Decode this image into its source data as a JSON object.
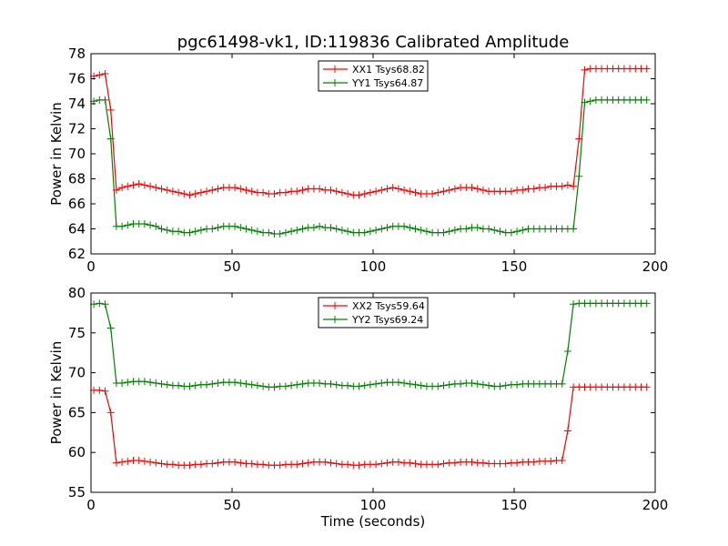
{
  "figure": {
    "title": "pgc61498-vk1, ID:119836 Calibrated Amplitude"
  },
  "chart_data": [
    {
      "type": "line",
      "title": "pgc61498-vk1, ID:119836 Calibrated Amplitude",
      "xlabel": "",
      "ylabel": "Power in Kelvin",
      "xlim": [
        0,
        200
      ],
      "ylim": [
        62,
        78
      ],
      "x_ticks": [
        0,
        50,
        100,
        150,
        200
      ],
      "y_ticks": [
        62,
        64,
        66,
        68,
        70,
        72,
        74,
        76,
        78
      ],
      "grid": false,
      "legend": "top-center",
      "marker": "+",
      "series": [
        {
          "name": "XX1 Tsys68.82",
          "color": "#ff0000",
          "x": [
            1,
            3,
            5,
            7,
            9,
            11,
            13,
            15,
            17,
            19,
            21,
            23,
            25,
            27,
            29,
            31,
            33,
            35,
            37,
            39,
            41,
            43,
            45,
            47,
            49,
            51,
            53,
            55,
            57,
            59,
            61,
            63,
            65,
            67,
            69,
            71,
            73,
            75,
            77,
            79,
            81,
            83,
            85,
            87,
            89,
            91,
            93,
            95,
            97,
            99,
            101,
            103,
            105,
            107,
            109,
            111,
            113,
            115,
            117,
            119,
            121,
            123,
            125,
            127,
            129,
            131,
            133,
            135,
            137,
            139,
            141,
            143,
            145,
            147,
            149,
            151,
            153,
            155,
            157,
            159,
            161,
            163,
            165,
            167,
            169,
            171,
            173,
            175,
            177,
            179,
            181,
            183,
            185,
            187,
            189,
            191,
            193,
            195,
            197
          ],
          "y": [
            76.2,
            76.3,
            76.4,
            73.5,
            67.1,
            67.3,
            67.4,
            67.5,
            67.6,
            67.5,
            67.4,
            67.3,
            67.2,
            67.1,
            67.0,
            66.9,
            66.8,
            66.7,
            66.8,
            66.9,
            67.0,
            67.1,
            67.2,
            67.3,
            67.3,
            67.3,
            67.2,
            67.1,
            67.0,
            66.9,
            66.9,
            66.8,
            66.8,
            66.9,
            66.9,
            67.0,
            67.0,
            67.1,
            67.2,
            67.2,
            67.2,
            67.1,
            67.1,
            67.0,
            66.9,
            66.8,
            66.7,
            66.7,
            66.8,
            66.9,
            67.0,
            67.1,
            67.2,
            67.3,
            67.2,
            67.1,
            67.0,
            66.9,
            66.8,
            66.8,
            66.8,
            66.9,
            67.0,
            67.1,
            67.2,
            67.3,
            67.3,
            67.3,
            67.2,
            67.1,
            67.0,
            67.0,
            67.0,
            67.0,
            67.0,
            67.1,
            67.1,
            67.2,
            67.2,
            67.3,
            67.3,
            67.4,
            67.4,
            67.4,
            67.5,
            67.4,
            71.2,
            76.7,
            76.8,
            76.8,
            76.8,
            76.8,
            76.8,
            76.8,
            76.8,
            76.8,
            76.8,
            76.8,
            76.8
          ],
          "y_note": ""
        },
        {
          "name": "YY1 Tsys64.87",
          "color": "#008000",
          "x": [
            1,
            3,
            5,
            7,
            9,
            11,
            13,
            15,
            17,
            19,
            21,
            23,
            25,
            27,
            29,
            31,
            33,
            35,
            37,
            39,
            41,
            43,
            45,
            47,
            49,
            51,
            53,
            55,
            57,
            59,
            61,
            63,
            65,
            67,
            69,
            71,
            73,
            75,
            77,
            79,
            81,
            83,
            85,
            87,
            89,
            91,
            93,
            95,
            97,
            99,
            101,
            103,
            105,
            107,
            109,
            111,
            113,
            115,
            117,
            119,
            121,
            123,
            125,
            127,
            129,
            131,
            133,
            135,
            137,
            139,
            141,
            143,
            145,
            147,
            149,
            151,
            153,
            155,
            157,
            159,
            161,
            163,
            165,
            167,
            169,
            171,
            173,
            175,
            177,
            179,
            181,
            183,
            185,
            187,
            189,
            191,
            193,
            195,
            197
          ],
          "y": [
            74.2,
            74.3,
            74.3,
            71.2,
            64.2,
            64.2,
            64.3,
            64.4,
            64.4,
            64.4,
            64.3,
            64.2,
            64.0,
            63.9,
            63.8,
            63.8,
            63.7,
            63.7,
            63.8,
            63.9,
            64.0,
            64.0,
            64.1,
            64.2,
            64.2,
            64.2,
            64.1,
            64.0,
            63.9,
            63.8,
            63.7,
            63.7,
            63.6,
            63.6,
            63.7,
            63.8,
            63.9,
            64.0,
            64.1,
            64.1,
            64.2,
            64.1,
            64.1,
            64.0,
            63.9,
            63.8,
            63.7,
            63.7,
            63.7,
            63.8,
            63.9,
            64.0,
            64.1,
            64.2,
            64.2,
            64.2,
            64.1,
            64.0,
            63.9,
            63.8,
            63.7,
            63.7,
            63.7,
            63.8,
            63.9,
            64.0,
            64.0,
            64.1,
            64.1,
            64.0,
            64.0,
            63.9,
            63.8,
            63.7,
            63.7,
            63.8,
            63.9,
            64.0,
            64.0,
            64.0,
            64.0,
            64.0,
            64.0,
            64.0,
            64.0,
            64.0,
            68.2,
            74.1,
            74.2,
            74.3,
            74.3,
            74.3,
            74.3,
            74.3,
            74.3,
            74.3,
            74.3,
            74.3,
            74.3
          ],
          "y_note": ""
        }
      ]
    },
    {
      "type": "line",
      "title": "",
      "xlabel": "Time (seconds)",
      "ylabel": "Power in Kelvin",
      "xlim": [
        0,
        200
      ],
      "ylim": [
        55,
        80
      ],
      "x_ticks": [
        0,
        50,
        100,
        150,
        200
      ],
      "y_ticks": [
        55,
        60,
        65,
        70,
        75,
        80
      ],
      "grid": false,
      "legend": "top-center",
      "marker": "+",
      "series": [
        {
          "name": "XX2 Tsys59.64",
          "color": "#ff0000",
          "x": [
            1,
            3,
            5,
            7,
            9,
            11,
            13,
            15,
            17,
            19,
            21,
            23,
            25,
            27,
            29,
            31,
            33,
            35,
            37,
            39,
            41,
            43,
            45,
            47,
            49,
            51,
            53,
            55,
            57,
            59,
            61,
            63,
            65,
            67,
            69,
            71,
            73,
            75,
            77,
            79,
            81,
            83,
            85,
            87,
            89,
            91,
            93,
            95,
            97,
            99,
            101,
            103,
            105,
            107,
            109,
            111,
            113,
            115,
            117,
            119,
            121,
            123,
            125,
            127,
            129,
            131,
            133,
            135,
            137,
            139,
            141,
            143,
            145,
            147,
            149,
            151,
            153,
            155,
            157,
            159,
            161,
            163,
            165,
            167,
            169,
            171,
            173,
            175,
            177,
            179,
            181,
            183,
            185,
            187,
            189,
            191,
            193,
            195,
            197
          ],
          "y": [
            67.8,
            67.8,
            67.7,
            65.0,
            58.7,
            58.8,
            58.9,
            59.0,
            59.0,
            58.9,
            58.8,
            58.7,
            58.6,
            58.5,
            58.5,
            58.4,
            58.4,
            58.4,
            58.5,
            58.5,
            58.6,
            58.6,
            58.7,
            58.8,
            58.8,
            58.8,
            58.7,
            58.6,
            58.6,
            58.5,
            58.5,
            58.4,
            58.4,
            58.4,
            58.5,
            58.5,
            58.5,
            58.6,
            58.7,
            58.8,
            58.8,
            58.8,
            58.7,
            58.6,
            58.5,
            58.5,
            58.4,
            58.4,
            58.5,
            58.5,
            58.5,
            58.6,
            58.7,
            58.8,
            58.8,
            58.7,
            58.7,
            58.6,
            58.5,
            58.5,
            58.5,
            58.5,
            58.6,
            58.7,
            58.7,
            58.8,
            58.8,
            58.8,
            58.7,
            58.7,
            58.6,
            58.6,
            58.6,
            58.6,
            58.7,
            58.7,
            58.8,
            58.8,
            58.8,
            58.9,
            58.9,
            58.9,
            59.0,
            59.0,
            62.7,
            68.2,
            68.2,
            68.2,
            68.2,
            68.2,
            68.2,
            68.2,
            68.2,
            68.2,
            68.2,
            68.2,
            68.2,
            68.2,
            68.2
          ],
          "y_note": ""
        },
        {
          "name": "YY2 Tsys69.24",
          "color": "#008000",
          "x": [
            1,
            3,
            5,
            7,
            9,
            11,
            13,
            15,
            17,
            19,
            21,
            23,
            25,
            27,
            29,
            31,
            33,
            35,
            37,
            39,
            41,
            43,
            45,
            47,
            49,
            51,
            53,
            55,
            57,
            59,
            61,
            63,
            65,
            67,
            69,
            71,
            73,
            75,
            77,
            79,
            81,
            83,
            85,
            87,
            89,
            91,
            93,
            95,
            97,
            99,
            101,
            103,
            105,
            107,
            109,
            111,
            113,
            115,
            117,
            119,
            121,
            123,
            125,
            127,
            129,
            131,
            133,
            135,
            137,
            139,
            141,
            143,
            145,
            147,
            149,
            151,
            153,
            155,
            157,
            159,
            161,
            163,
            165,
            167,
            169,
            171,
            173,
            175,
            177,
            179,
            181,
            183,
            185,
            187,
            189,
            191,
            193,
            195,
            197
          ],
          "y": [
            78.6,
            78.7,
            78.6,
            75.6,
            68.7,
            68.7,
            68.8,
            68.9,
            68.9,
            68.9,
            68.8,
            68.7,
            68.6,
            68.5,
            68.4,
            68.4,
            68.3,
            68.3,
            68.4,
            68.5,
            68.5,
            68.6,
            68.7,
            68.8,
            68.8,
            68.8,
            68.7,
            68.6,
            68.5,
            68.4,
            68.3,
            68.2,
            68.2,
            68.3,
            68.3,
            68.4,
            68.5,
            68.6,
            68.7,
            68.7,
            68.7,
            68.6,
            68.6,
            68.5,
            68.4,
            68.4,
            68.3,
            68.3,
            68.4,
            68.5,
            68.6,
            68.7,
            68.8,
            68.8,
            68.8,
            68.7,
            68.6,
            68.5,
            68.4,
            68.3,
            68.3,
            68.3,
            68.4,
            68.5,
            68.6,
            68.6,
            68.7,
            68.7,
            68.6,
            68.5,
            68.4,
            68.3,
            68.3,
            68.4,
            68.5,
            68.5,
            68.6,
            68.6,
            68.6,
            68.6,
            68.6,
            68.6,
            68.6,
            68.6,
            72.7,
            78.6,
            78.7,
            78.7,
            78.7,
            78.7,
            78.7,
            78.7,
            78.7,
            78.7,
            78.7,
            78.7,
            78.7,
            78.7,
            78.7
          ],
          "y_note": ""
        }
      ]
    }
  ]
}
